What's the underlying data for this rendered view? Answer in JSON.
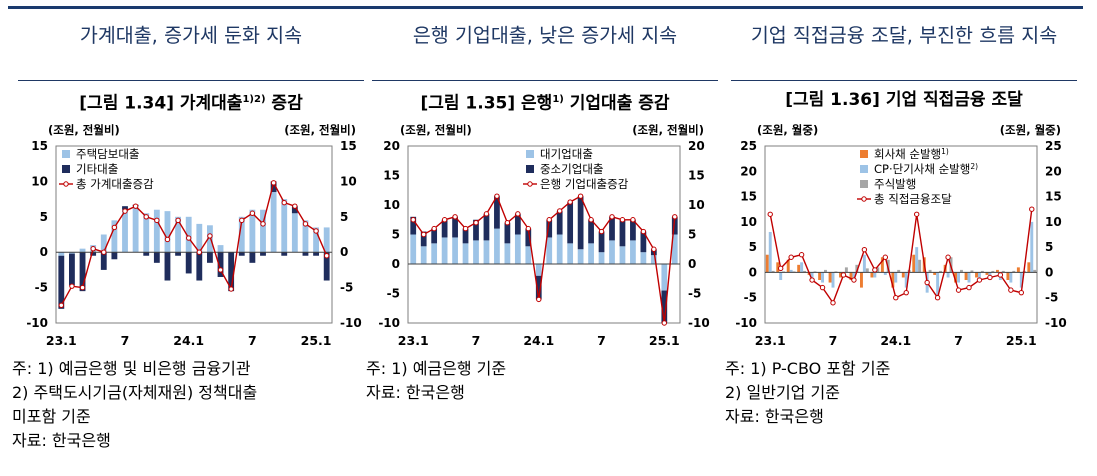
{
  "panels": [
    {
      "headline": "가계대출, 증가세 둔화 지속",
      "figure_title": "[그림 1.34] 가계대출",
      "title_sup": "1)2)",
      "title_suffix": " 증감",
      "notes": [
        "주:  1)  예금은행 및 비은행 금융기관",
        "      2)  주택도시기금(자체재원) 정책대출",
        "      미포함 기준",
        "자료:  한국은행"
      ]
    },
    {
      "headline": "은행 기업대출, 낮은 증가세 지속",
      "figure_title": "[그림 1.35] 은행",
      "title_sup": "1)",
      "title_suffix": " 기업대출 증감",
      "notes": [
        "  주:  1)  예금은행 기준",
        "자료:  한국은행"
      ]
    },
    {
      "headline": "기업 직접금융 조달, 부진한 흐름 지속",
      "figure_title": "[그림 1.36] 기업 직접금융 조달",
      "title_sup": "",
      "title_suffix": "",
      "notes": [
        "    주:  1)  P-CBO 포함 기준",
        "            2)  일반기업 기준",
        "자료:  한국은행"
      ]
    }
  ],
  "colors": {
    "light": "#9dc3e6",
    "dark": "#1f2d5c",
    "line": "#c00000",
    "orange": "#ed7d31",
    "gray": "#a6a6a6",
    "headline": "#1f3864"
  },
  "chart_data": [
    {
      "type": "bar",
      "stacked": true,
      "unit_left": "(조원, 전월비)",
      "unit_right": "(조원, 전월비)",
      "ylim": [
        -10,
        15
      ],
      "yticks": [
        -10,
        -5,
        0,
        5,
        10,
        15
      ],
      "xtick_labels": [
        {
          "i": 0,
          "label": "23.1"
        },
        {
          "i": 6,
          "label": "7"
        },
        {
          "i": 12,
          "label": "24.1"
        },
        {
          "i": 18,
          "label": "7"
        },
        {
          "i": 24,
          "label": "25.1"
        }
      ],
      "legend": "top-left",
      "series": [
        {
          "name": "주택담보대출",
          "kind": "bar",
          "color": "#9dc3e6",
          "values": [
            -0.5,
            -0.2,
            0.5,
            1.0,
            2.5,
            4.5,
            6.0,
            6.5,
            5.5,
            6.0,
            5.8,
            5.0,
            5.0,
            4.0,
            3.8,
            1.0,
            0.0,
            5.0,
            6.0,
            6.0,
            8.5,
            7.5,
            5.5,
            4.5,
            3.5,
            3.5
          ]
        },
        {
          "name": "기타대출",
          "kind": "bar",
          "color": "#1f2d5c",
          "values": [
            -7.5,
            -4.5,
            -5.5,
            -0.5,
            -2.5,
            -1.0,
            0.5,
            0.2,
            -0.5,
            -1.5,
            -4.0,
            -0.5,
            -3.0,
            -4.0,
            -1.5,
            -3.5,
            -5.5,
            -0.5,
            -1.5,
            -0.5,
            1.5,
            -0.5,
            1.0,
            -0.5,
            -0.5,
            -4.0
          ]
        },
        {
          "name": "총 가계대출증감",
          "kind": "line",
          "color": "#c00000",
          "values": [
            -7.5,
            -4.8,
            -5.0,
            0.5,
            0.0,
            3.5,
            5.8,
            6.5,
            5.0,
            4.5,
            1.8,
            4.5,
            2.0,
            0.0,
            2.3,
            -2.5,
            -5.2,
            4.5,
            5.5,
            4.0,
            9.8,
            7.0,
            6.5,
            4.0,
            3.0,
            -0.5
          ]
        }
      ]
    },
    {
      "type": "bar",
      "stacked": true,
      "unit_left": "(조원, 전월비)",
      "unit_right": "(조원, 전월비)",
      "ylim": [
        -10,
        20
      ],
      "yticks": [
        -10,
        -5,
        0,
        5,
        10,
        15,
        20
      ],
      "xtick_labels": [
        {
          "i": 0,
          "label": "23.1"
        },
        {
          "i": 6,
          "label": "7"
        },
        {
          "i": 12,
          "label": "24.1"
        },
        {
          "i": 18,
          "label": "7"
        },
        {
          "i": 24,
          "label": "25.1"
        }
      ],
      "legend": "top-center",
      "series": [
        {
          "name": "대기업대출",
          "kind": "bar",
          "color": "#9dc3e6",
          "values": [
            5.0,
            3.0,
            3.5,
            4.5,
            4.5,
            3.5,
            4.0,
            4.0,
            6.0,
            3.5,
            5.0,
            3.0,
            -2.0,
            4.5,
            5.0,
            3.5,
            2.5,
            3.5,
            2.0,
            4.0,
            3.0,
            4.0,
            2.0,
            1.5,
            -4.5,
            5.0
          ]
        },
        {
          "name": "중소기업대출",
          "kind": "bar",
          "color": "#1f2d5c",
          "values": [
            3.0,
            2.5,
            2.5,
            3.0,
            3.5,
            2.5,
            3.5,
            4.5,
            5.5,
            3.5,
            3.5,
            3.0,
            -4.0,
            3.0,
            4.0,
            7.0,
            9.0,
            4.0,
            3.5,
            4.0,
            4.5,
            3.5,
            3.5,
            1.0,
            -5.5,
            3.0
          ]
        },
        {
          "name": "은행 기업대출증감",
          "kind": "line",
          "color": "#c00000",
          "values": [
            7.5,
            5.0,
            6.0,
            7.5,
            8.0,
            6.0,
            7.0,
            8.5,
            11.5,
            7.0,
            8.5,
            6.0,
            -6.0,
            7.5,
            9.0,
            10.5,
            11.5,
            7.5,
            5.5,
            8.0,
            7.5,
            7.5,
            5.5,
            2.5,
            -10.0,
            8.0
          ]
        }
      ]
    },
    {
      "type": "bar",
      "stacked": false,
      "unit_left": "(조원, 월중)",
      "unit_right": "(조원, 월중)",
      "ylim": [
        -10,
        25
      ],
      "yticks": [
        -10,
        -5,
        0,
        5,
        10,
        15,
        20,
        25
      ],
      "xtick_labels": [
        {
          "i": 0,
          "label": "23.1"
        },
        {
          "i": 6,
          "label": "7"
        },
        {
          "i": 12,
          "label": "24.1"
        },
        {
          "i": 18,
          "label": "7"
        },
        {
          "i": 24,
          "label": "25.1"
        }
      ],
      "legend": "top-left",
      "series": [
        {
          "name": "회사채 순발행",
          "name_sup": "1)",
          "kind": "bar",
          "color": "#ed7d31",
          "values": [
            3.5,
            2.0,
            2.5,
            1.5,
            -0.5,
            -1.5,
            -2.0,
            -1.0,
            -1.5,
            -3.0,
            -1.0,
            3.0,
            -3.0,
            -1.0,
            3.5,
            3.0,
            -0.5,
            1.5,
            -2.0,
            -1.5,
            -1.0,
            -0.5,
            0.5,
            -1.5,
            1.0,
            2.0
          ]
        },
        {
          "name": "CP·단기사채 순발행",
          "name_sup": "2)",
          "kind": "bar",
          "color": "#9dc3e6",
          "values": [
            8.0,
            -1.5,
            0.5,
            2.0,
            -1.0,
            -2.0,
            -3.0,
            -1.0,
            -1.0,
            3.5,
            -1.0,
            -0.5,
            -2.0,
            -3.0,
            5.0,
            -4.0,
            -5.0,
            -1.0,
            -2.0,
            -2.0,
            -1.0,
            -1.0,
            -1.5,
            -2.0,
            -3.0,
            10.0
          ]
        },
        {
          "name": "주식발행",
          "kind": "bar",
          "color": "#a6a6a6",
          "values": [
            0.3,
            0.2,
            0.2,
            0.3,
            0.2,
            0.5,
            0.2,
            1.0,
            1.5,
            0.8,
            1.0,
            2.5,
            0.5,
            0.5,
            2.5,
            0.5,
            0.3,
            3.0,
            0.5,
            0.4,
            0.3,
            0.3,
            0.3,
            0.3,
            0.3,
            0.5
          ]
        },
        {
          "name": "총 직접금융조달",
          "kind": "line",
          "color": "#c00000",
          "values": [
            11.5,
            0.8,
            3.0,
            3.5,
            -1.5,
            -3.0,
            -6.0,
            -0.5,
            -1.5,
            4.5,
            0.5,
            3.0,
            -5.0,
            -4.0,
            11.5,
            -2.0,
            -5.0,
            3.0,
            -3.5,
            -3.0,
            -1.5,
            -1.0,
            -0.5,
            -3.5,
            -4.0,
            12.5
          ]
        }
      ]
    }
  ]
}
